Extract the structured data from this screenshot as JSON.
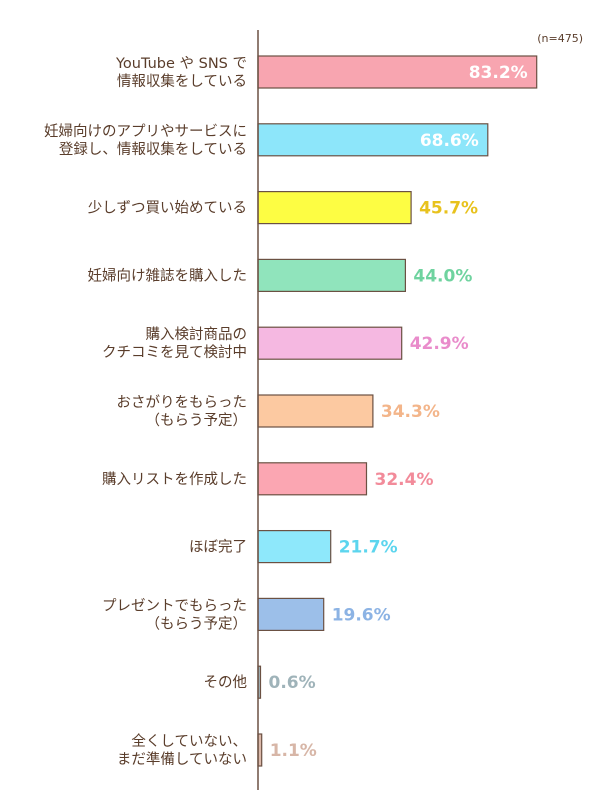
{
  "chart_data": {
    "type": "bar",
    "orientation": "horizontal",
    "note": "(n=475)",
    "title": "",
    "xlabel": "",
    "ylabel": "",
    "xlim": [
      0,
      100
    ],
    "grid": false,
    "unit": "%",
    "categories": [
      [
        "YouTube や SNS で",
        "情報収集をしている"
      ],
      [
        "妊婦向けのアプリやサービスに",
        "登録し、情報収集をしている"
      ],
      [
        "少しずつ買い始めている"
      ],
      [
        "妊婦向け雑誌を購入した"
      ],
      [
        "購入検討商品の",
        "クチコミを見て検討中"
      ],
      [
        "おさがりをもらった",
        "（もらう予定）"
      ],
      [
        "購入リストを作成した"
      ],
      [
        "ほぼ完了"
      ],
      [
        "プレゼントでもらった",
        "（もらう予定）"
      ],
      [
        "その他"
      ],
      [
        "全くしていない、",
        "まだ準備していない"
      ]
    ],
    "values": [
      83.2,
      68.6,
      45.7,
      44.0,
      42.9,
      34.3,
      32.4,
      21.7,
      19.6,
      0.6,
      1.1
    ],
    "value_labels": [
      "83.2%",
      "68.6%",
      "45.7%",
      "44.0%",
      "42.9%",
      "34.3%",
      "32.4%",
      "21.7%",
      "19.6%",
      "0.6%",
      "1.1%"
    ],
    "bar_colors": [
      "#f8a5b0",
      "#8de6fa",
      "#fdfd43",
      "#90e4bc",
      "#f5b8e1",
      "#fcc9a1",
      "#fba6b2",
      "#8ee8fb",
      "#9cbfe9",
      "#a2b6bc",
      "#dbb9aa"
    ],
    "label_colors": [
      "#ffffff",
      "#ffffff",
      "#e8c21d",
      "#6fd39f",
      "#e98ccb",
      "#f3b58a",
      "#f28b9a",
      "#5cd5ee",
      "#8cb3e4",
      "#9fb3b9",
      "#d7b6a7"
    ]
  }
}
